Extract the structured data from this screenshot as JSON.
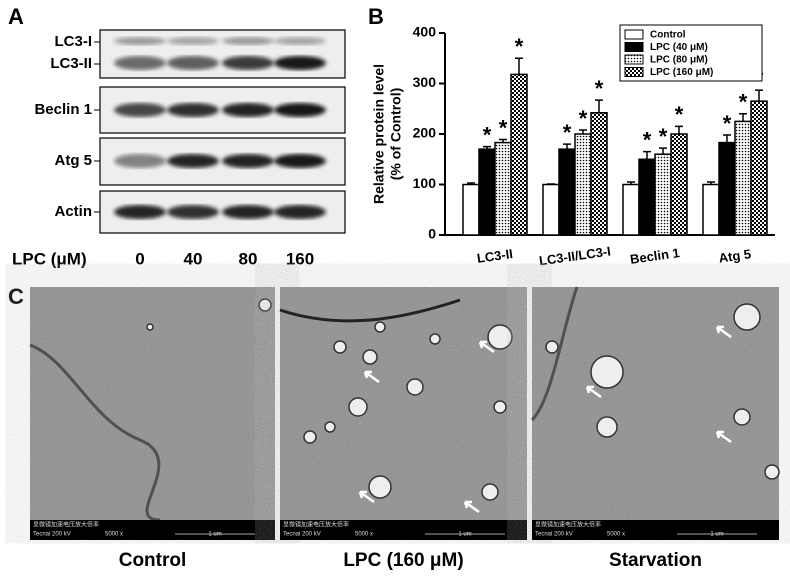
{
  "panel_labels": [
    "A",
    "B",
    "C"
  ],
  "blot": {
    "bands": [
      "LC3-I",
      "LC3-II",
      "Beclin 1",
      "Atg 5",
      "Actin"
    ],
    "treatment_label": "LPC (μM)",
    "doses": [
      "0",
      "40",
      "80",
      "160"
    ]
  },
  "chart_data": {
    "type": "bar",
    "ylabel": [
      "Relative protein level",
      "(% of Control)"
    ],
    "categories": [
      "LC3-II",
      "LC3-II/LC3-I",
      "Beclin 1",
      "Atg 5"
    ],
    "series": [
      {
        "name": "Control",
        "color": "#ffffff",
        "pattern": "solid",
        "significant": false,
        "values": [
          100,
          100,
          100,
          100
        ],
        "errors": [
          3,
          1,
          5,
          5
        ]
      },
      {
        "name": "LPC (40 μM)",
        "color": "#000000",
        "pattern": "solid",
        "significant": true,
        "values": [
          170,
          170,
          150,
          183
        ],
        "errors": [
          5,
          10,
          15,
          15
        ]
      },
      {
        "name": "LPC (80 μM)",
        "color": "#000000",
        "pattern": "dots",
        "significant": true,
        "values": [
          183,
          200,
          160,
          225
        ],
        "errors": [
          6,
          8,
          12,
          15
        ]
      },
      {
        "name": "LPC (160 μM)",
        "color": "#000000",
        "pattern": "checker",
        "significant": true,
        "values": [
          318,
          242,
          200,
          265
        ],
        "errors": [
          32,
          25,
          15,
          22
        ]
      }
    ],
    "significance_marker": "*",
    "ylim": [
      0,
      400
    ],
    "yticks": [
      0,
      100,
      200,
      300,
      400
    ],
    "legend": "upper right"
  },
  "micrographs": {
    "labels": [
      "Control",
      "LPC (160 μM)",
      "Starvation"
    ],
    "header": "显微镜加速电压放大倍率",
    "instrument": "Tecnai  200 kV",
    "magnification": "5000 x",
    "scale": "1 um"
  }
}
